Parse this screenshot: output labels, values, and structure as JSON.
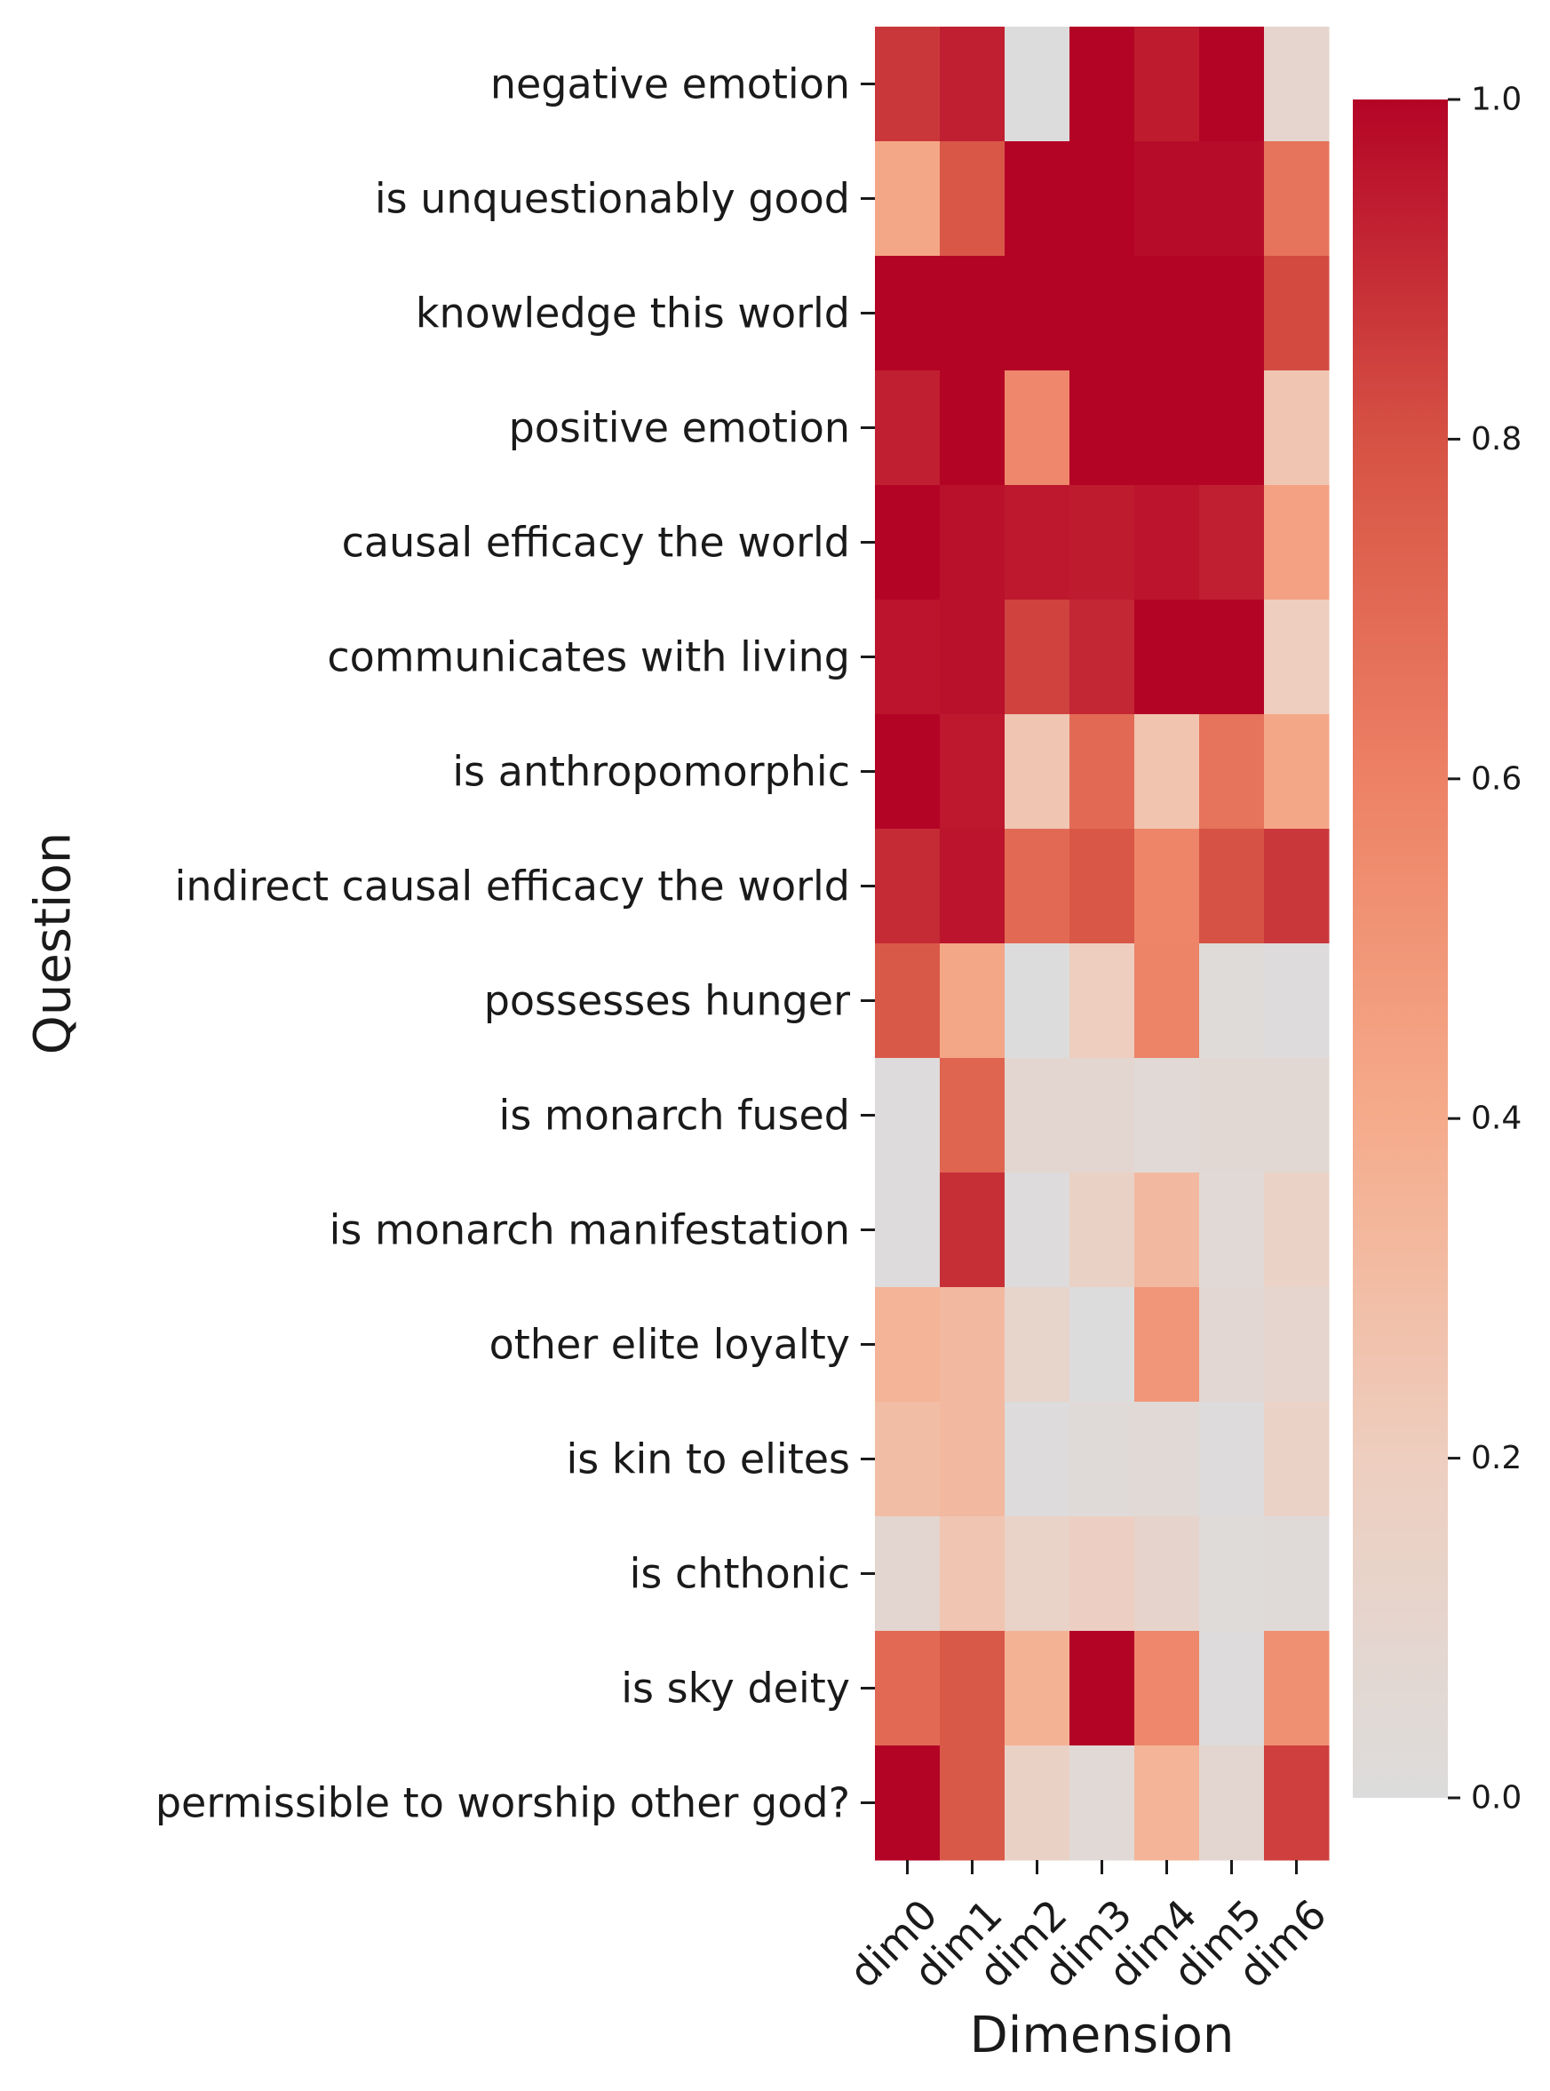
{
  "chart_data": {
    "type": "heatmap",
    "xlabel": "Dimension",
    "ylabel": "Question",
    "x_categories": [
      "dim0",
      "dim1",
      "dim2",
      "dim3",
      "dim4",
      "dim5",
      "dim6"
    ],
    "y_categories": [
      "negative emotion",
      "is unquestionably good",
      "knowledge this world",
      "positive emotion",
      "causal efficacy the world",
      "communicates with living",
      "is anthropomorphic",
      "indirect causal efficacy the world",
      "possesses hunger",
      "is monarch fused",
      "is monarch manifestation",
      "other elite loyalty",
      "is kin to elites",
      "is chthonic",
      "is sky deity",
      "permissible to worship other god?"
    ],
    "values": [
      [
        0.87,
        0.93,
        0.0,
        1.0,
        0.94,
        1.0,
        0.1
      ],
      [
        0.42,
        0.78,
        1.0,
        1.0,
        0.98,
        0.98,
        0.66
      ],
      [
        1.0,
        1.0,
        1.0,
        1.0,
        1.0,
        1.0,
        0.82
      ],
      [
        0.93,
        1.0,
        0.57,
        1.0,
        1.0,
        1.0,
        0.25
      ],
      [
        1.0,
        0.97,
        0.95,
        0.94,
        0.96,
        0.93,
        0.45
      ],
      [
        0.96,
        0.97,
        0.84,
        0.91,
        1.0,
        1.0,
        0.2
      ],
      [
        1.0,
        0.95,
        0.25,
        0.7,
        0.26,
        0.66,
        0.42
      ],
      [
        0.9,
        0.96,
        0.7,
        0.78,
        0.58,
        0.8,
        0.87
      ],
      [
        0.77,
        0.42,
        0.0,
        0.2,
        0.59,
        0.02,
        0.01
      ],
      [
        0.01,
        0.72,
        0.08,
        0.08,
        0.04,
        0.06,
        0.06
      ],
      [
        0.01,
        0.89,
        0.01,
        0.16,
        0.32,
        0.05,
        0.15
      ],
      [
        0.35,
        0.32,
        0.12,
        0.0,
        0.5,
        0.07,
        0.1
      ],
      [
        0.3,
        0.32,
        0.01,
        0.03,
        0.05,
        0.01,
        0.15
      ],
      [
        0.08,
        0.25,
        0.14,
        0.18,
        0.11,
        0.02,
        0.03
      ],
      [
        0.7,
        0.77,
        0.36,
        1.0,
        0.57,
        0.01,
        0.53
      ],
      [
        1.0,
        0.77,
        0.16,
        0.04,
        0.35,
        0.08,
        0.85
      ]
    ],
    "zlim": [
      0,
      1
    ],
    "colormap": "coolwarm (upper half): grey at 0, red at 1",
    "color_low": "#dcdcdc",
    "color_high": "#b40426",
    "colorbar": {
      "ticks": [
        0.0,
        0.2,
        0.4,
        0.6,
        0.8,
        1.0
      ],
      "tick_labels": [
        "0.0",
        "0.2",
        "0.4",
        "0.6",
        "0.8",
        "1.0"
      ],
      "placement": "right"
    },
    "grid": false
  }
}
